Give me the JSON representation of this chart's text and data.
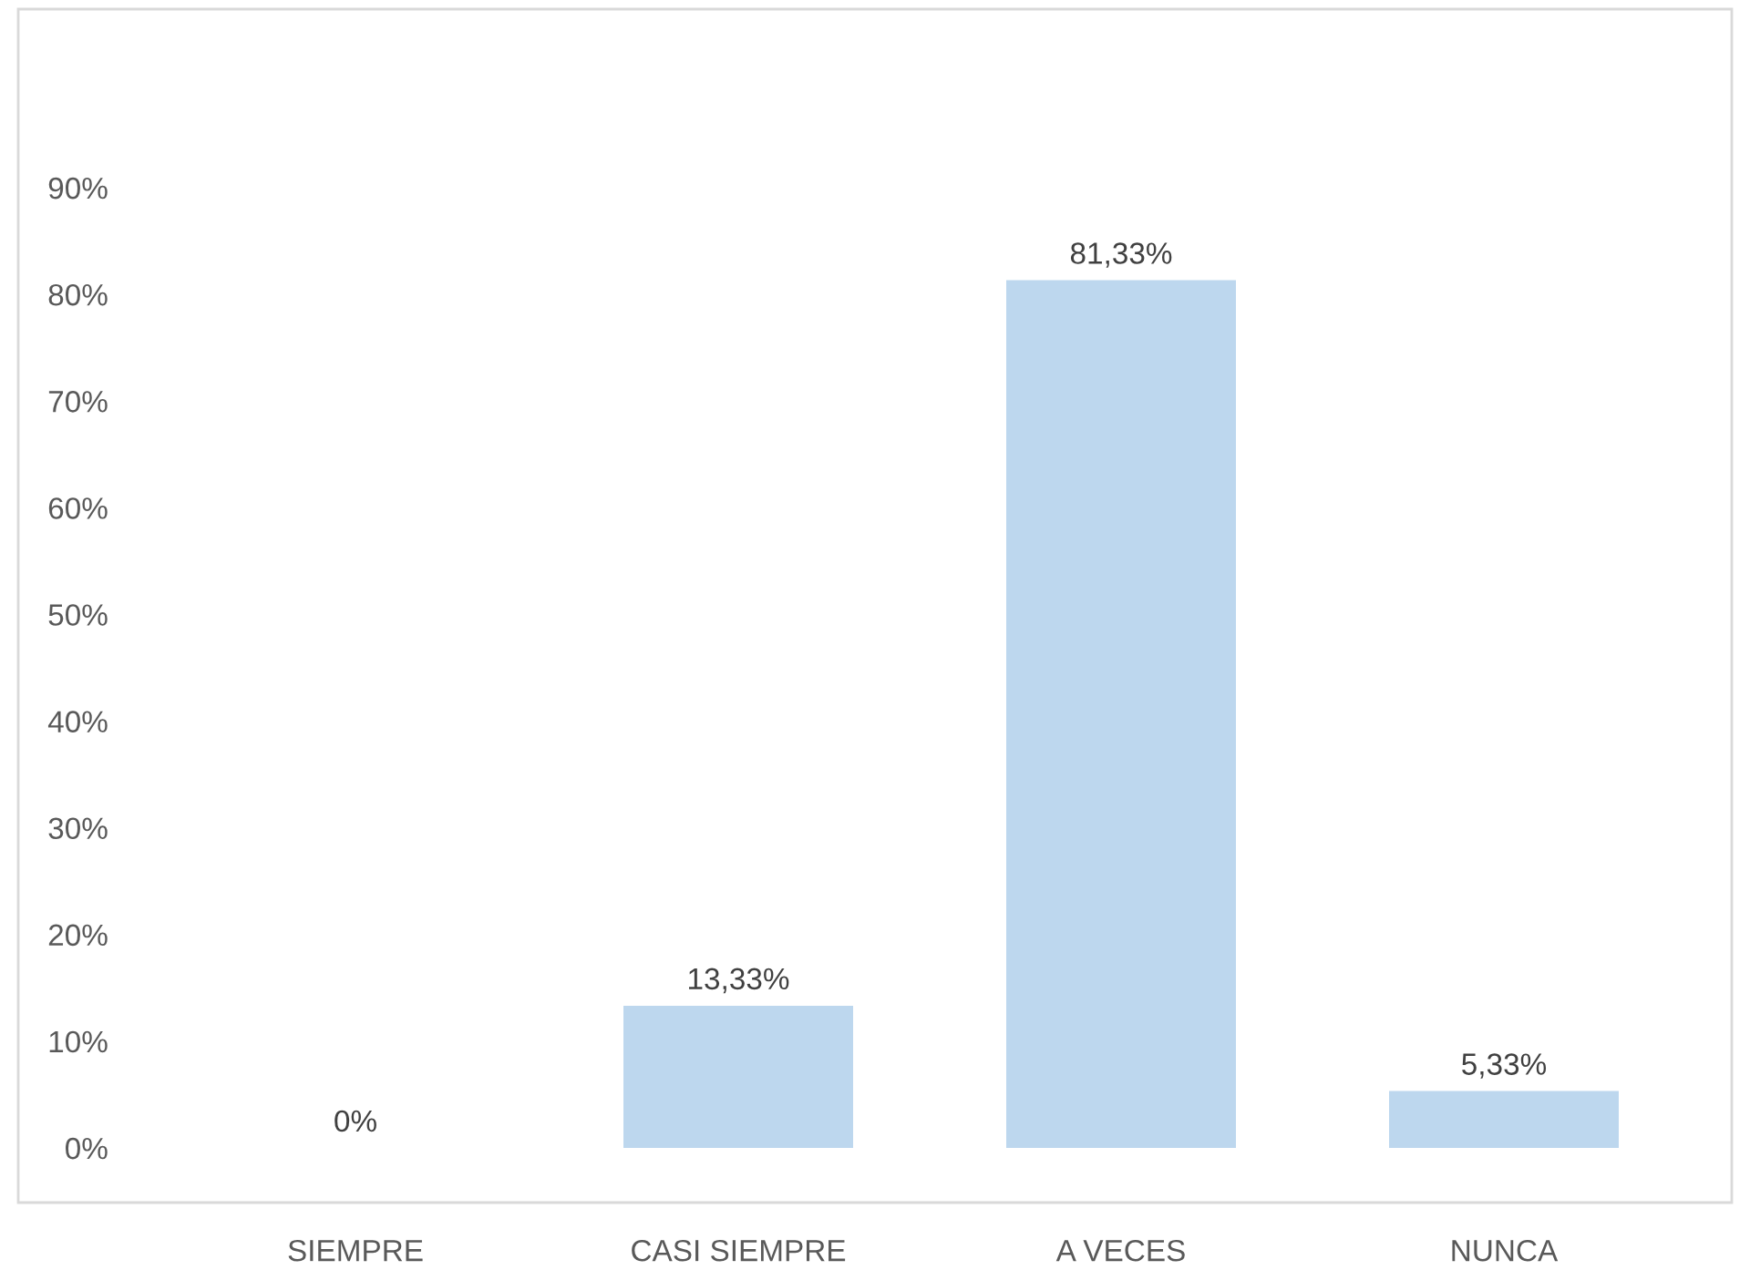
{
  "chart_data": {
    "type": "bar",
    "categories": [
      "SIEMPRE",
      "CASI SIEMPRE",
      "A VECES",
      "NUNCA"
    ],
    "values": [
      0,
      13.33,
      81.33,
      5.33
    ],
    "value_labels": [
      "0%",
      "13,33%",
      "81,33%",
      "5,33%"
    ],
    "color": "#bdd7ee",
    "ylim": [
      0,
      90
    ],
    "yticks": [
      {
        "value": 0,
        "label": "0%"
      },
      {
        "value": 10,
        "label": "10%"
      },
      {
        "value": 20,
        "label": "20%"
      },
      {
        "value": 30,
        "label": "30%"
      },
      {
        "value": 40,
        "label": "40%"
      },
      {
        "value": 50,
        "label": "50%"
      },
      {
        "value": 60,
        "label": "60%"
      },
      {
        "value": 70,
        "label": "70%"
      },
      {
        "value": 80,
        "label": "80%"
      },
      {
        "value": 90,
        "label": "90%"
      }
    ],
    "grid": false,
    "legend": false
  }
}
